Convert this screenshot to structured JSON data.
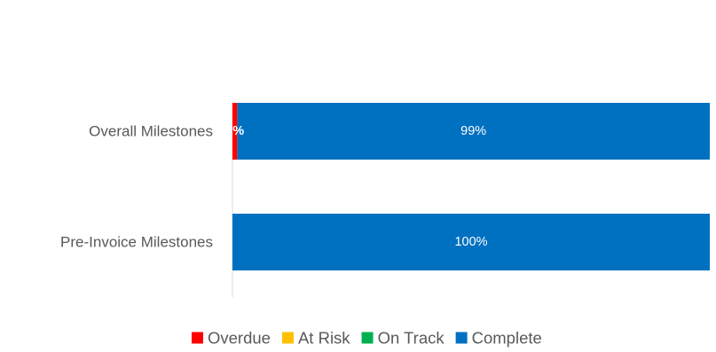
{
  "chart_data": {
    "type": "bar",
    "orientation": "horizontal",
    "stacked": true,
    "percent_stacked": true,
    "categories": [
      "Overall Milestones",
      "Pre-Invoice Milestones"
    ],
    "series": [
      {
        "name": "Overdue",
        "color": "#ff0000",
        "values": [
          1,
          0
        ],
        "labels": [
          "1%",
          ""
        ]
      },
      {
        "name": "At Risk",
        "color": "#ffc000",
        "values": [
          0,
          0
        ],
        "labels": [
          "",
          ""
        ]
      },
      {
        "name": "On Track",
        "color": "#00b050",
        "values": [
          0,
          0
        ],
        "labels": [
          "",
          ""
        ]
      },
      {
        "name": "Complete",
        "color": "#0070c0",
        "values": [
          99,
          100
        ],
        "labels": [
          "99%",
          "100%"
        ]
      }
    ],
    "title": "",
    "xlabel": "",
    "ylabel": "",
    "xlim": [
      0,
      100
    ],
    "grid": false,
    "legend_position": "bottom"
  }
}
